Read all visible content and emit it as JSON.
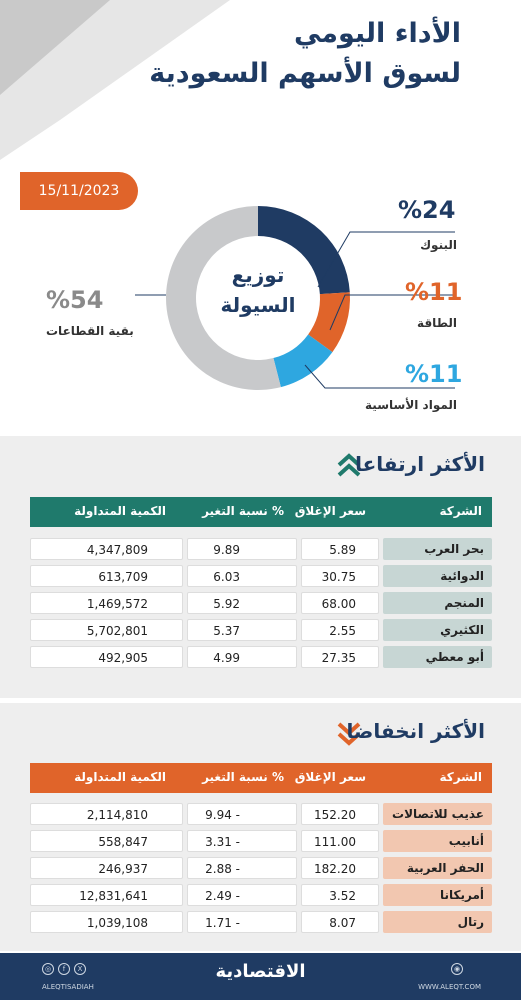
{
  "header": {
    "title_line1": "الأداء اليومي",
    "title_line2": "لسوق الأسهم السعودية",
    "date": "15/11/2023"
  },
  "chart_data": {
    "type": "pie",
    "center_label_line1": "توزيع",
    "center_label_line2": "السيولة",
    "slices": [
      {
        "label": "البنوك",
        "value": 24,
        "display": "%24",
        "color": "#1f3b63"
      },
      {
        "label": "الطاقة",
        "value": 11,
        "display": "%11",
        "color": "#e0642a"
      },
      {
        "label": "المواد الأساسية",
        "value": 11,
        "display": "%11",
        "color": "#2ea7e0"
      },
      {
        "label": "بقية القطاعات",
        "value": 54,
        "display": "%54",
        "color": "#c8c9cb"
      }
    ]
  },
  "gainers": {
    "title": "الأكثر ارتفاعا",
    "header_color": "#1f7a6c",
    "name_cell_color": "#c7d6d4",
    "columns": {
      "name": "الشركة",
      "close": "سعر الإغلاق",
      "change": "نسبة التغير %",
      "volume": "الكمية المتداولة"
    },
    "rows": [
      {
        "name": "بحر العرب",
        "close": "5.89",
        "change": "9.89",
        "volume": "4,347,809"
      },
      {
        "name": "الدوائية",
        "close": "30.75",
        "change": "6.03",
        "volume": "613,709"
      },
      {
        "name": "المنجم",
        "close": "68.00",
        "change": "5.92",
        "volume": "1,469,572"
      },
      {
        "name": "الكثيري",
        "close": "2.55",
        "change": "5.37",
        "volume": "5,702,801"
      },
      {
        "name": "أبو معطي",
        "close": "27.35",
        "change": "4.99",
        "volume": "492,905"
      }
    ]
  },
  "losers": {
    "title": "الأكثر انخفاضا",
    "header_color": "#e0642a",
    "name_cell_color": "#f2c7b0",
    "columns": {
      "name": "الشركة",
      "close": "سعر الإغلاق",
      "change": "نسبة التغير %",
      "volume": "الكمية المتداولة"
    },
    "rows": [
      {
        "name": "عذيب للاتصالات",
        "close": "152.20",
        "change": "9.94 -",
        "volume": "2,114,810"
      },
      {
        "name": "أنابيب",
        "close": "111.00",
        "change": "3.31 -",
        "volume": "558,847"
      },
      {
        "name": "الحفر العربية",
        "close": "182.20",
        "change": "2.88 -",
        "volume": "246,937"
      },
      {
        "name": "أمريكانا",
        "close": "3.52",
        "change": "2.49 -",
        "volume": "12,831,641"
      },
      {
        "name": "رتال",
        "close": "8.07",
        "change": "1.71 -",
        "volume": "1,039,108"
      }
    ]
  },
  "footer": {
    "brand": "الاقتصادية",
    "handle": "ALEQTISADIAH",
    "site": "WWW.ALEQT.COM",
    "icons": [
      "instagram-icon",
      "facebook-icon",
      "x-icon",
      "web-icon"
    ]
  }
}
